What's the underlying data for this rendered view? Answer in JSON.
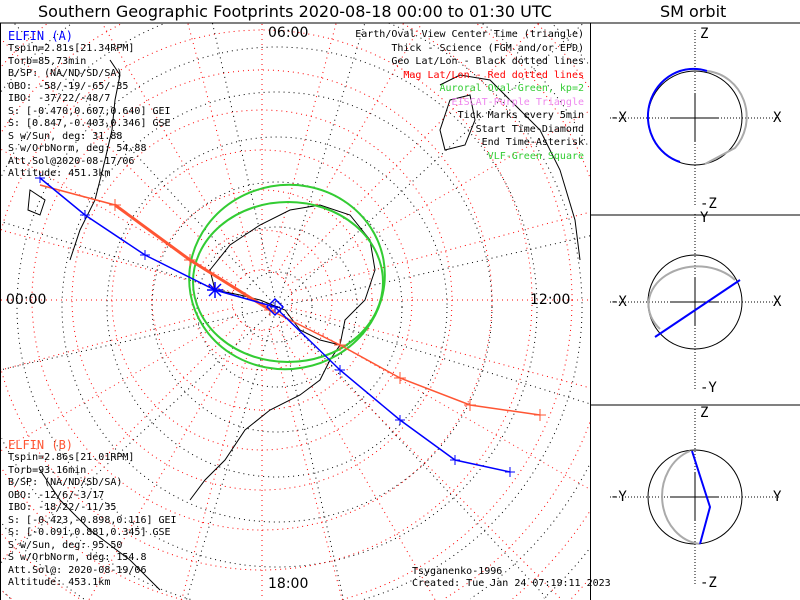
{
  "title": "Southern Geographic Footprints 2020-08-18 00:00 to 01:30 UTC",
  "orbit_title": "SM orbit",
  "mlt_labels": {
    "top": "06:00",
    "left": "00:00",
    "right": "12:00",
    "bottom": "18:00"
  },
  "sat_a": {
    "name": "ELFIN (A)",
    "color": "#0000ff",
    "lines": [
      "Tspin=2.81s[21.34RPM]",
      "Torb=85.73min",
      "B/SP: (NA/ND/SD/SA)",
      "OBO: -58/-19/-65/-35",
      "IBO: -37/22/-48/7",
      "S: [-0.470,0.607,0.640] GEI",
      "S: [0.847,-0.403,0.346] GSE",
      "S w/Sun, deg: 31.88",
      "S w/OrbNorm, deg: 54.88",
      "Att.Sol@2020-08-17/06",
      "Altitude: 451.3km"
    ]
  },
  "sat_b": {
    "name": "ELFIN (B)",
    "color": "#ff5533",
    "lines": [
      "Tspin=2.86s[21.01RPM]",
      "Torb=93.16min",
      "B/SP: (NA/ND/SD/SA)",
      "OBO: -12/6/-3/17",
      "IBO: -18/22/-11/35",
      "S: [-0.423,-0.898,0.116] GEI",
      "S: [-0.091,0.881,0.345] GSE",
      "S w/Sun, deg: 95.50",
      "S w/OrbNorm, deg: 154.8",
      "Att.Sol@: 2020-08-19/06",
      "Altitude: 453.1km"
    ]
  },
  "legend": [
    {
      "text": "Earth/Oval View Center Time (triangle)",
      "color": "#000000"
    },
    {
      "text": "Thick - Science (FGM and/or EPD)",
      "color": "#000000"
    },
    {
      "text": "Geo Lat/Lon - Black dotted lines",
      "color": "#000000"
    },
    {
      "text": "Mag Lat/Lon - Red dotted lines",
      "color": "#ff0000"
    },
    {
      "text": "Auroral Oval-Green, kp=2",
      "color": "#33cc33"
    },
    {
      "text": "EISCAT-Purple Triangle",
      "color": "#ee88ee"
    },
    {
      "text": "Tick Marks every 5min",
      "color": "#000000"
    },
    {
      "text": "Start Time-Diamond",
      "color": "#000000"
    },
    {
      "text": "End Time-Asterisk",
      "color": "#000000"
    },
    {
      "text": "VLF-Green Square",
      "color": "#33cc33"
    }
  ],
  "footer": {
    "model": "Tsyganenko-1996",
    "created": "Created: Tue Jan 24 07:19:11 2023"
  },
  "orbit_panels": [
    {
      "top": "Z",
      "bottom": "-Z",
      "left": "-X",
      "right": "X"
    },
    {
      "top": "Y",
      "bottom": "-Y",
      "left": "-X",
      "right": "X"
    },
    {
      "top": "Z",
      "bottom": "-Z",
      "left": "-Y",
      "right": "Y"
    }
  ]
}
